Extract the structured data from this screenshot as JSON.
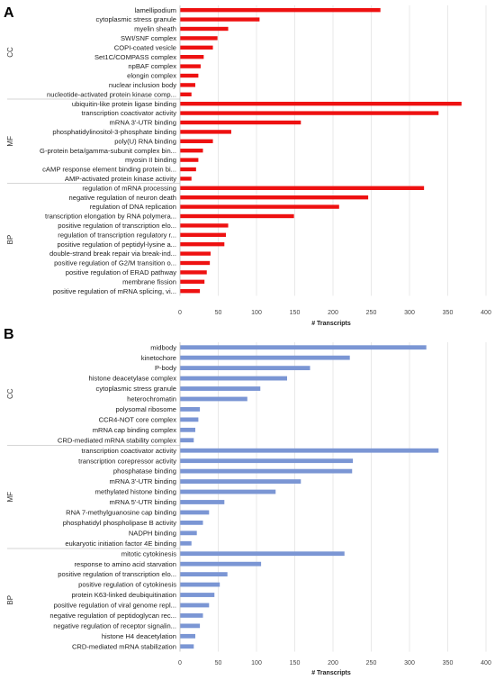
{
  "chart_data": [
    {
      "panel": "A",
      "type": "bar",
      "orientation": "horizontal",
      "color": "#ee1111",
      "xlabel": "# Transcripts",
      "xlim": [
        0,
        400
      ],
      "xticks": [
        0,
        50,
        100,
        150,
        200,
        250,
        300,
        350,
        400
      ],
      "grid": true,
      "groups": [
        {
          "name": "CC",
          "categories": [
            "lamellipodium",
            "cytoplasmic stress granule",
            "myelin sheath",
            "SWI/SNF complex",
            "COPI-coated vesicle",
            "Set1C/COMPASS complex",
            "npBAF complex",
            "elongin complex",
            "nuclear inclusion body",
            "nucleotide-activated protein kinase comp..."
          ],
          "values": [
            262,
            104,
            63,
            49,
            43,
            31,
            27,
            24,
            20,
            15
          ]
        },
        {
          "name": "MF",
          "categories": [
            "ubiquitin-like protein ligase binding",
            "transcription coactivator activity",
            "mRNA 3'-UTR binding",
            "phosphatidylinositol-3-phosphate binding",
            "poly(U) RNA binding",
            "G-protein beta/gamma-subunit complex bin...",
            "myosin II binding",
            "cAMP response element binding protein bi...",
            "AMP-activated protein kinase activity"
          ],
          "values": [
            368,
            338,
            158,
            67,
            43,
            30,
            24,
            21,
            15
          ]
        },
        {
          "name": "BP",
          "categories": [
            "regulation of mRNA processing",
            "negative regulation of neuron death",
            "regulation of DNA replication",
            "transcription elongation by RNA polymera...",
            "positive regulation of transcription elo...",
            "regulation of transcription regulatory r...",
            "positive regulation of peptidyl-lysine a...",
            "double-strand break repair via break-ind...",
            "positive regulation of G2/M transition o...",
            "positive regulation of ERAD pathway",
            "membrane fission",
            "positive regulation of mRNA splicing, vi..."
          ],
          "values": [
            319,
            246,
            208,
            149,
            63,
            60,
            58,
            40,
            39,
            35,
            32,
            26
          ]
        }
      ]
    },
    {
      "panel": "B",
      "type": "bar",
      "orientation": "horizontal",
      "color": "#7b96d4",
      "xlabel": "# Transcripts",
      "xlim": [
        0,
        400
      ],
      "xticks": [
        0,
        50,
        100,
        150,
        200,
        250,
        300,
        350,
        400
      ],
      "grid": true,
      "groups": [
        {
          "name": "CC",
          "categories": [
            "midbody",
            "kinetochore",
            "P-body",
            "histone deacetylase complex",
            "cytoplasmic stress granule",
            "heterochromatin",
            "polysomal ribosome",
            "CCR4-NOT core complex",
            "mRNA cap binding complex",
            "CRD-mediated mRNA stability complex"
          ],
          "values": [
            322,
            222,
            170,
            140,
            105,
            88,
            26,
            24,
            20,
            18
          ]
        },
        {
          "name": "MF",
          "categories": [
            "transcription coactivator activity",
            "transcription corepressor activity",
            "phosphatase binding",
            "mRNA 3'-UTR binding",
            "methylated histone binding",
            "mRNA 5'-UTR binding",
            "RNA 7-methylguanosine cap binding",
            "phosphatidyl phospholipase B activity",
            "NADPH binding",
            "eukaryotic initiation factor 4E binding"
          ],
          "values": [
            338,
            226,
            225,
            158,
            125,
            58,
            38,
            30,
            22,
            15
          ]
        },
        {
          "name": "BP",
          "categories": [
            "mitotic cytokinesis",
            "response to amino acid starvation",
            "positive regulation of transcription elo...",
            "positive regulation of cytokinesis",
            "protein K63-linked deubiquitination",
            "positive regulation of viral genome repl...",
            "negative regulation of peptidoglycan rec...",
            "negative regulation of receptor signalin...",
            "histone H4 deacetylation",
            "CRD-mediated mRNA stabilization"
          ],
          "values": [
            215,
            106,
            62,
            52,
            45,
            38,
            30,
            26,
            20,
            18
          ]
        }
      ]
    }
  ]
}
